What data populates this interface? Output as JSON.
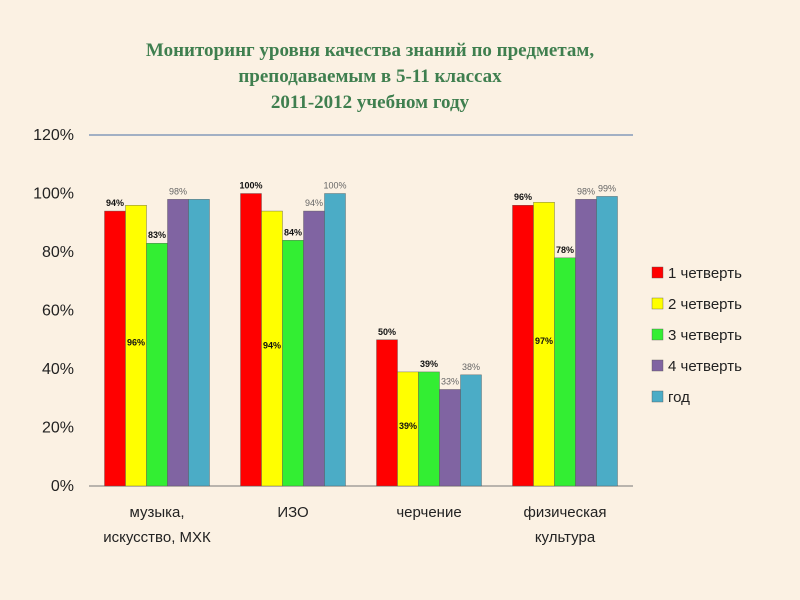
{
  "title_lines": [
    "Мониторинг уровня качества знаний по предметам,",
    "преподаваемым в 5-11 классах",
    "2011-2012 учебном году"
  ],
  "chart_data": {
    "type": "bar",
    "categories": [
      [
        "музыка,",
        "искусство, МХК"
      ],
      [
        "ИЗО"
      ],
      [
        "черчение"
      ],
      [
        "физическая",
        "культура"
      ]
    ],
    "series": [
      {
        "name": "1 четверть",
        "color": "#ff0000",
        "values": [
          94,
          100,
          50,
          96
        ],
        "labels": [
          "94%",
          "100%",
          "50%",
          "96%"
        ]
      },
      {
        "name": "2 четверть",
        "color": "#ffff00",
        "values": [
          96,
          94,
          39,
          97
        ],
        "labels": [
          "96%",
          "94%",
          "39%",
          "97%"
        ]
      },
      {
        "name": "3 четверть",
        "color": "#33ee33",
        "values": [
          83,
          84,
          39,
          78
        ],
        "labels": [
          "83%",
          "84%",
          "39%",
          "78%"
        ]
      },
      {
        "name": "4 четверть",
        "color": "#8064a2",
        "values": [
          98,
          94,
          33,
          98
        ],
        "labels": [
          "98%",
          "94%",
          "33%",
          "98%"
        ]
      },
      {
        "name": "год",
        "color": "#4bacc6",
        "values": [
          98,
          100,
          38,
          99
        ],
        "labels": [
          "",
          "100%",
          "38%",
          "99%"
        ]
      }
    ],
    "ylim": [
      0,
      120
    ],
    "yticks": [
      "0%",
      "20%",
      "40%",
      "60%",
      "80%",
      "100%",
      "120%"
    ],
    "legend_position": "right",
    "grid": false
  }
}
